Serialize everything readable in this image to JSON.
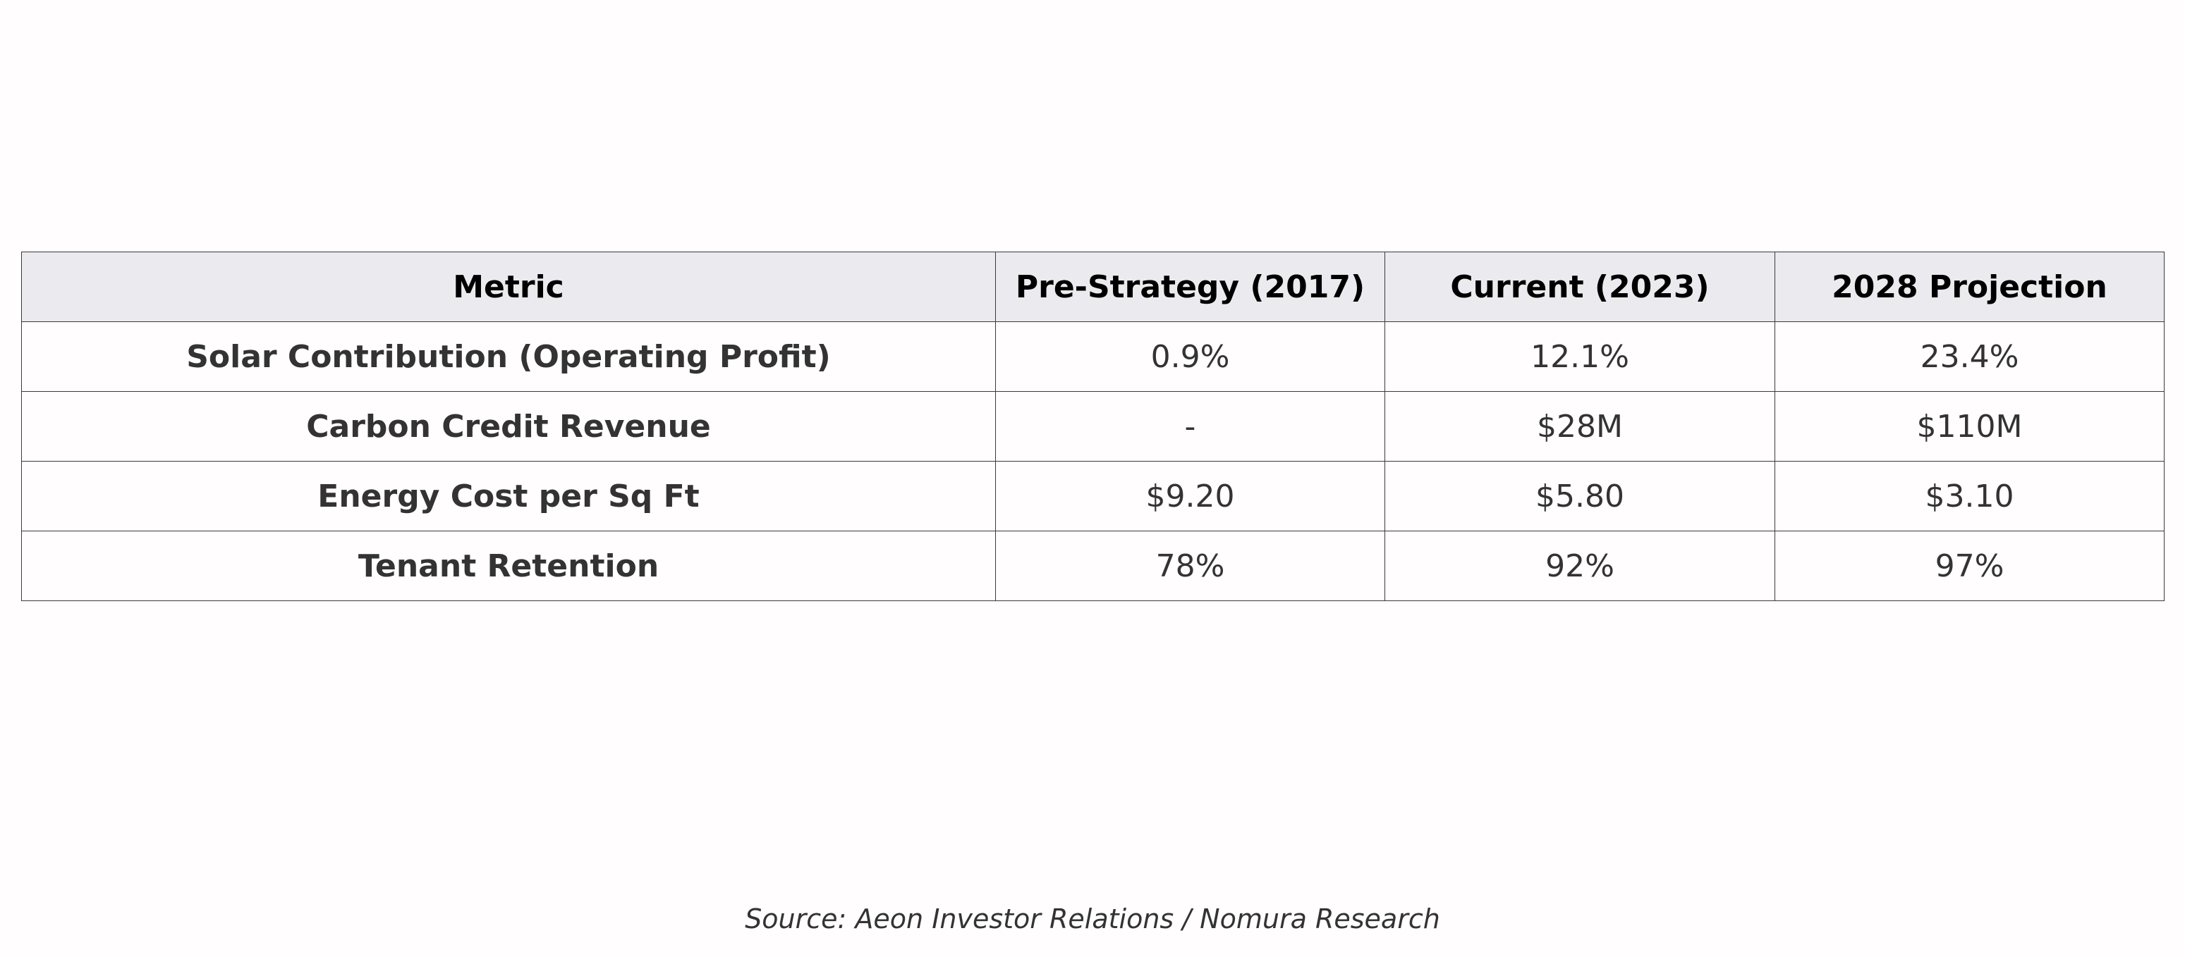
{
  "chart_data": {
    "type": "table",
    "columns": [
      "Metric",
      "Pre-Strategy (2017)",
      "Current (2023)",
      "2028 Projection"
    ],
    "rows": [
      [
        "Solar Contribution (Operating Profit)",
        "0.9%",
        "12.1%",
        "23.4%"
      ],
      [
        "Carbon Credit Revenue",
        "-",
        "$28M",
        "$110M"
      ],
      [
        "Energy Cost per Sq Ft",
        "$9.20",
        "$5.80",
        "$3.10"
      ],
      [
        "Tenant Retention",
        "78%",
        "92%",
        "97%"
      ]
    ]
  },
  "source": "Source: Aeon Investor Relations / Nomura Research",
  "colors": {
    "header_bg": "#ebeaee",
    "cell_bg": "#fffdfe",
    "border": "#3a3a3a",
    "text": "#333333"
  }
}
